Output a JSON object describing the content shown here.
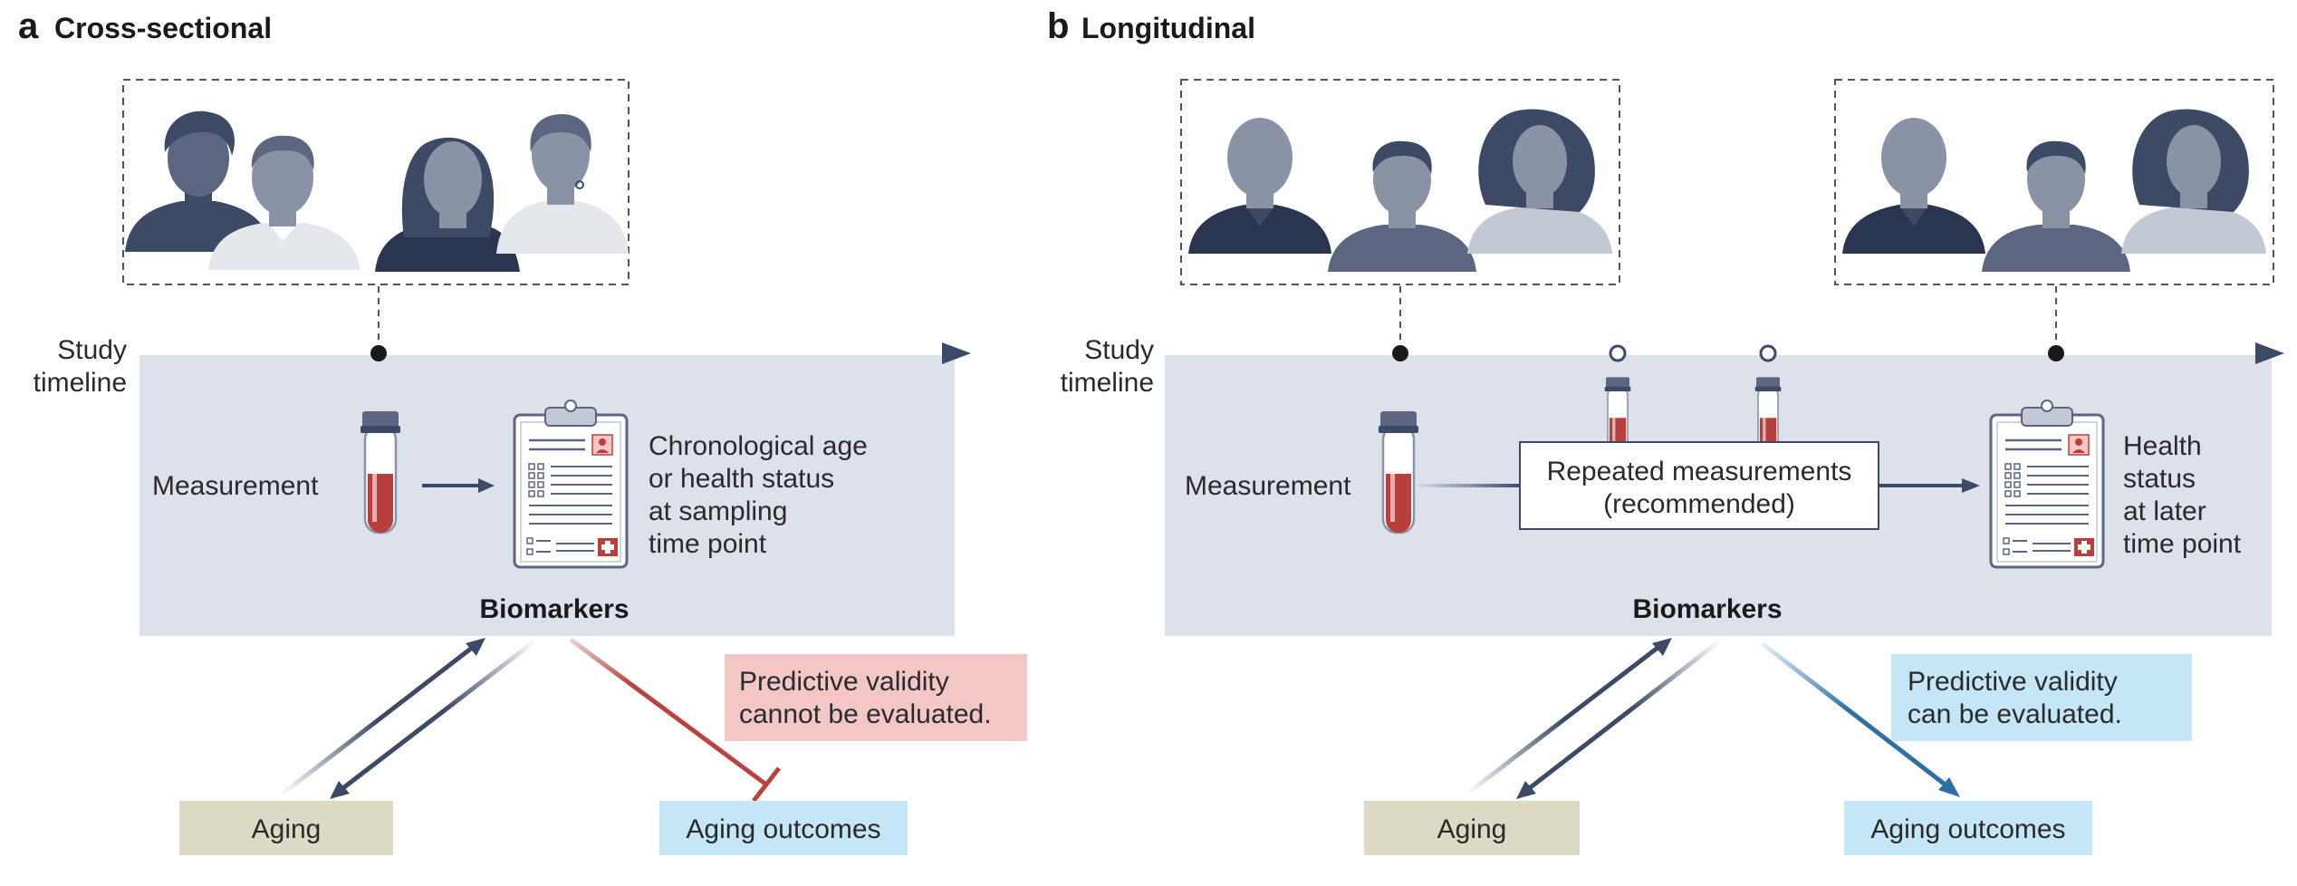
{
  "panel_a": {
    "letter": "a",
    "title": "Cross-sectional",
    "timeline_label": [
      "Study",
      "timeline"
    ],
    "measurement_label": "Measurement",
    "result_lines": [
      "Chronological age",
      "or health status",
      "at sampling",
      "time point"
    ],
    "biomarkers_label": "Biomarkers",
    "validity_lines": [
      "Predictive validity",
      "cannot be evaluated."
    ],
    "aging_label": "Aging",
    "outcomes_label": "Aging outcomes"
  },
  "panel_b": {
    "letter": "b",
    "title": "Longitudinal",
    "timeline_label": [
      "Study",
      "timeline"
    ],
    "measurement_label": "Measurement",
    "repeated_lines": [
      "Repeated measurements",
      "(recommended)"
    ],
    "result_lines": [
      "Health",
      "status",
      "at later",
      "time point"
    ],
    "biomarkers_label": "Biomarkers",
    "validity_lines": [
      "Predictive validity",
      "can be evaluated."
    ],
    "aging_label": "Aging",
    "outcomes_label": "Aging outcomes"
  },
  "colors": {
    "timeline": "#3d4a66",
    "panel_bg": "#dde2ea",
    "aging_box": "#dcd9c4",
    "outcomes_box": "#c4e6f7",
    "cannot_box": "#f3c7c5",
    "can_box": "#c4e6f7",
    "inhibit_arrow": "#b8443f",
    "positive_arrow": "#2f6fa3",
    "blood": "#b8403c"
  },
  "icons": [
    "person-silhouette-icon",
    "blood-tube-icon",
    "clipboard-record-icon",
    "medical-cross-icon"
  ]
}
